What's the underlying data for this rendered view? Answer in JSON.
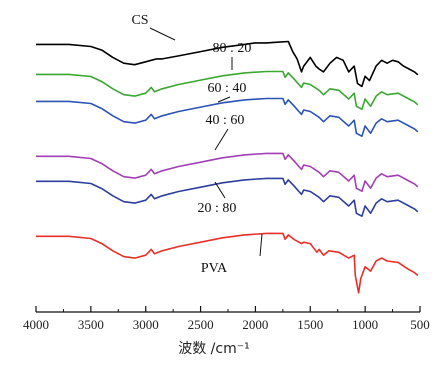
{
  "chart_data": {
    "type": "line",
    "xlabel": "波数 /cm⁻¹",
    "xlim": [
      4000,
      500
    ],
    "x_ticks": [
      4000,
      3500,
      3000,
      2500,
      2000,
      1500,
      1000,
      500
    ],
    "x_tick_labels": [
      "4000",
      "3500",
      "3000",
      "2500",
      "2000",
      "1500",
      "1000",
      "500"
    ],
    "series": [
      {
        "name": "CS",
        "color": "#000000",
        "x": [
          4000,
          3700,
          3500,
          3400,
          3300,
          3200,
          3100,
          3000,
          2950,
          2900,
          2850,
          2700,
          2500,
          2300,
          2100,
          2000,
          1900,
          1800,
          1700,
          1660,
          1620,
          1580,
          1560,
          1500,
          1450,
          1420,
          1380,
          1320,
          1260,
          1200,
          1150,
          1100,
          1070,
          1030,
          1000,
          960,
          900,
          850,
          800,
          750,
          700,
          650,
          600,
          550,
          520
        ],
        "values": [
          0.97,
          0.97,
          0.955,
          0.93,
          0.88,
          0.84,
          0.83,
          0.85,
          0.86,
          0.87,
          0.87,
          0.89,
          0.92,
          0.95,
          0.97,
          0.98,
          0.98,
          0.985,
          0.99,
          0.92,
          0.87,
          0.78,
          0.82,
          0.88,
          0.82,
          0.8,
          0.78,
          0.84,
          0.88,
          0.86,
          0.78,
          0.82,
          0.7,
          0.68,
          0.75,
          0.72,
          0.82,
          0.86,
          0.84,
          0.86,
          0.85,
          0.82,
          0.8,
          0.78,
          0.76
        ]
      },
      {
        "name": "80 : 20",
        "color": "#3aa830",
        "x": [
          4000,
          3700,
          3500,
          3400,
          3300,
          3200,
          3100,
          3000,
          2950,
          2920,
          2850,
          2700,
          2500,
          2300,
          2100,
          1900,
          1750,
          1730,
          1700,
          1650,
          1580,
          1560,
          1500,
          1420,
          1380,
          1320,
          1240,
          1150,
          1100,
          1080,
          1030,
          1000,
          950,
          900,
          850,
          800,
          700,
          600,
          550,
          520
        ],
        "values": [
          0.97,
          0.97,
          0.955,
          0.92,
          0.87,
          0.83,
          0.82,
          0.84,
          0.88,
          0.85,
          0.87,
          0.9,
          0.93,
          0.96,
          0.98,
          0.99,
          0.99,
          0.95,
          0.98,
          0.94,
          0.88,
          0.91,
          0.9,
          0.86,
          0.83,
          0.87,
          0.86,
          0.8,
          0.84,
          0.75,
          0.73,
          0.8,
          0.75,
          0.82,
          0.85,
          0.83,
          0.84,
          0.8,
          0.78,
          0.76
        ]
      },
      {
        "name": "60 : 40",
        "color": "#2b54b4",
        "x": [
          4000,
          3700,
          3500,
          3400,
          3300,
          3200,
          3100,
          3000,
          2950,
          2920,
          2850,
          2700,
          2500,
          2300,
          2100,
          1900,
          1750,
          1730,
          1700,
          1650,
          1580,
          1560,
          1500,
          1420,
          1380,
          1320,
          1240,
          1150,
          1100,
          1080,
          1030,
          1000,
          950,
          900,
          850,
          800,
          700,
          600,
          550,
          520
        ],
        "values": [
          0.97,
          0.97,
          0.955,
          0.92,
          0.87,
          0.83,
          0.82,
          0.84,
          0.88,
          0.85,
          0.87,
          0.9,
          0.93,
          0.96,
          0.98,
          0.99,
          0.99,
          0.95,
          0.98,
          0.94,
          0.88,
          0.91,
          0.9,
          0.86,
          0.83,
          0.87,
          0.86,
          0.8,
          0.84,
          0.75,
          0.73,
          0.8,
          0.75,
          0.82,
          0.85,
          0.83,
          0.84,
          0.8,
          0.78,
          0.76
        ]
      },
      {
        "name": "40 : 60",
        "color": "#a23fb5",
        "x": [
          4000,
          3700,
          3500,
          3400,
          3300,
          3200,
          3100,
          3000,
          2950,
          2920,
          2850,
          2700,
          2500,
          2300,
          2100,
          1900,
          1750,
          1730,
          1700,
          1650,
          1580,
          1560,
          1500,
          1420,
          1380,
          1320,
          1240,
          1150,
          1100,
          1080,
          1030,
          1000,
          950,
          900,
          850,
          800,
          700,
          600,
          550,
          520
        ],
        "values": [
          0.97,
          0.97,
          0.955,
          0.92,
          0.87,
          0.83,
          0.82,
          0.84,
          0.88,
          0.85,
          0.87,
          0.9,
          0.93,
          0.96,
          0.98,
          0.99,
          0.99,
          0.95,
          0.98,
          0.94,
          0.88,
          0.91,
          0.9,
          0.86,
          0.83,
          0.87,
          0.86,
          0.8,
          0.84,
          0.75,
          0.73,
          0.8,
          0.75,
          0.82,
          0.85,
          0.83,
          0.84,
          0.8,
          0.78,
          0.76
        ]
      },
      {
        "name": "20 : 80",
        "color": "#2d3f9c",
        "x": [
          4000,
          3700,
          3500,
          3400,
          3300,
          3200,
          3100,
          3000,
          2950,
          2920,
          2850,
          2700,
          2500,
          2300,
          2100,
          1900,
          1750,
          1730,
          1700,
          1650,
          1580,
          1560,
          1500,
          1420,
          1380,
          1320,
          1240,
          1150,
          1100,
          1080,
          1030,
          1000,
          950,
          900,
          850,
          800,
          700,
          600,
          550,
          520
        ],
        "values": [
          0.97,
          0.97,
          0.955,
          0.92,
          0.87,
          0.83,
          0.82,
          0.84,
          0.88,
          0.85,
          0.87,
          0.9,
          0.93,
          0.96,
          0.98,
          0.99,
          0.99,
          0.95,
          0.98,
          0.94,
          0.88,
          0.91,
          0.9,
          0.86,
          0.83,
          0.87,
          0.86,
          0.8,
          0.84,
          0.75,
          0.73,
          0.8,
          0.75,
          0.82,
          0.85,
          0.83,
          0.84,
          0.8,
          0.78,
          0.76
        ]
      },
      {
        "name": "PVA",
        "color": "#e8302b",
        "x": [
          4000,
          3700,
          3500,
          3400,
          3300,
          3200,
          3100,
          3000,
          2950,
          2920,
          2850,
          2700,
          2500,
          2300,
          2100,
          1900,
          1750,
          1730,
          1700,
          1650,
          1580,
          1560,
          1500,
          1440,
          1420,
          1380,
          1330,
          1240,
          1150,
          1100,
          1090,
          1060,
          1040,
          1000,
          950,
          900,
          850,
          800,
          700,
          600,
          550,
          520
        ],
        "values": [
          0.97,
          0.97,
          0.955,
          0.92,
          0.87,
          0.83,
          0.82,
          0.84,
          0.88,
          0.85,
          0.87,
          0.9,
          0.93,
          0.96,
          0.98,
          0.99,
          0.99,
          0.95,
          0.98,
          0.95,
          0.92,
          0.93,
          0.92,
          0.86,
          0.88,
          0.84,
          0.87,
          0.86,
          0.82,
          0.84,
          0.7,
          0.58,
          0.68,
          0.76,
          0.73,
          0.8,
          0.82,
          0.8,
          0.79,
          0.74,
          0.72,
          0.7
        ]
      }
    ]
  }
}
